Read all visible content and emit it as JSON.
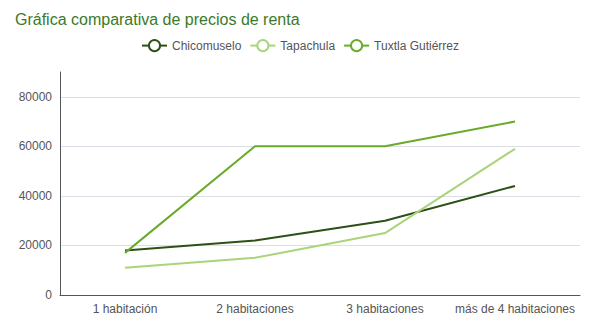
{
  "chart_data": {
    "type": "line",
    "title": "Gráfica comparativa de precios de renta",
    "categories": [
      "1 habitación",
      "2 habitaciones",
      "3 habitaciones",
      "más de 4 habitaciones"
    ],
    "series": [
      {
        "name": "Chicomuselo",
        "color": "#2d5016",
        "values": [
          18000,
          22000,
          30000,
          44000
        ]
      },
      {
        "name": "Tapachula",
        "color": "#aad47a",
        "values": [
          11000,
          15000,
          25000,
          59000
        ]
      },
      {
        "name": "Tuxtla Gutiérrez",
        "color": "#6aaa2a",
        "values": [
          17000,
          60000,
          60000,
          70000
        ]
      }
    ],
    "ylim": [
      0,
      90000
    ],
    "yticks": [
      0,
      20000,
      40000,
      60000,
      80000
    ],
    "grid": true,
    "legend": "top"
  }
}
